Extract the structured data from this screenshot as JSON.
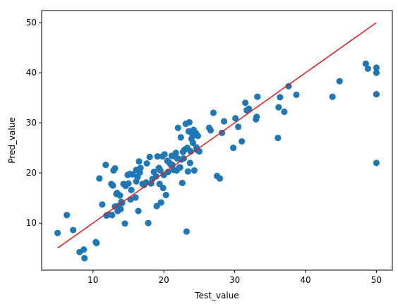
{
  "chart_data": {
    "type": "scatter",
    "title": "",
    "xlabel": "Test_value",
    "ylabel": "Pred_value",
    "xlim": [
      2.75,
      52.25
    ],
    "ylim": [
      0.6,
      52.4
    ],
    "xticks": [
      10,
      20,
      30,
      40,
      50
    ],
    "yticks": [
      10,
      20,
      30,
      40,
      50
    ],
    "grid": false,
    "legend": "none",
    "colors": {
      "points": "#1f77b4",
      "line": "#e41a1c",
      "axes": "#000000"
    },
    "series": [
      {
        "type": "scatter",
        "x": [
          5.0,
          6.3,
          7.2,
          8.1,
          8.7,
          8.8,
          10.4,
          10.5,
          10.9,
          11.3,
          11.8,
          11.9,
          12.2,
          12.6,
          12.7,
          12.8,
          12.9,
          13.1,
          13.1,
          13.3,
          13.4,
          13.5,
          13.6,
          13.8,
          13.9,
          14.0,
          14.1,
          14.3,
          14.5,
          14.6,
          14.9,
          15.0,
          15.2,
          15.3,
          15.4,
          15.6,
          16.0,
          16.1,
          16.1,
          16.3,
          16.4,
          16.5,
          16.6,
          16.7,
          17.0,
          17.2,
          17.5,
          17.6,
          17.8,
          18.0,
          18.2,
          18.4,
          18.6,
          18.9,
          19.0,
          19.1,
          19.3,
          19.4,
          19.5,
          19.6,
          19.8,
          19.9,
          20.0,
          20.1,
          20.3,
          20.5,
          20.6,
          20.8,
          21.0,
          21.1,
          21.2,
          21.4,
          21.5,
          21.7,
          21.8,
          21.9,
          22.0,
          22.2,
          22.3,
          22.4,
          22.5,
          22.6,
          22.7,
          22.8,
          22.9,
          23.0,
          23.1,
          23.2,
          23.3,
          23.4,
          23.5,
          23.6,
          23.7,
          23.8,
          23.9,
          24.0,
          24.1,
          24.2,
          24.3,
          24.4,
          24.5,
          24.6,
          24.7,
          24.8,
          25.0,
          26.4,
          26.6,
          27.0,
          27.5,
          27.9,
          28.2,
          28.5,
          29.8,
          30.1,
          30.5,
          31.0,
          31.5,
          31.7,
          32.0,
          33.0,
          33.1,
          33.2,
          36.1,
          36.2,
          36.4,
          37.0,
          37.6,
          38.7,
          43.8,
          44.8,
          48.5,
          48.8,
          50.0,
          50.0,
          50.0,
          50.0
        ],
        "y": [
          8.0,
          11.6,
          8.6,
          4.2,
          4.7,
          3.0,
          6.2,
          6.0,
          18.9,
          13.7,
          21.6,
          11.5,
          11.7,
          17.8,
          11.6,
          17.5,
          20.5,
          20.9,
          13.3,
          15.8,
          16.0,
          12.4,
          13.4,
          15.5,
          12.8,
          14.2,
          14.0,
          17.8,
          9.9,
          17.4,
          19.6,
          17.9,
          19.8,
          14.7,
          16.6,
          19.7,
          15.1,
          18.3,
          20.6,
          19.2,
          12.4,
          22.3,
          20.1,
          21.0,
          17.8,
          17.6,
          18.1,
          21.9,
          10.0,
          23.2,
          17.9,
          18.8,
          20.2,
          19.3,
          13.4,
          23.3,
          21.0,
          17.8,
          20.5,
          14.1,
          23.3,
          17.0,
          19.6,
          23.7,
          15.6,
          22.4,
          20.2,
          22.0,
          21.6,
          23.4,
          21.6,
          20.6,
          23.3,
          24.0,
          20.5,
          22.9,
          29.0,
          21.1,
          21.1,
          27.1,
          22.7,
          18.0,
          24.2,
          22.9,
          24.6,
          24.7,
          29.8,
          8.3,
          25.0,
          20.3,
          28.3,
          30.1,
          22.0,
          24.3,
          26.8,
          27.8,
          26.0,
          28.6,
          20.5,
          27.6,
          28.0,
          25.1,
          24.6,
          27.4,
          24.3,
          29.0,
          28.5,
          32.0,
          19.4,
          18.9,
          28.0,
          30.3,
          25.0,
          30.9,
          29.2,
          26.3,
          34.0,
          32.5,
          32.8,
          30.7,
          31.2,
          35.2,
          27.0,
          33.1,
          35.1,
          32.2,
          37.3,
          35.6,
          35.2,
          38.3,
          41.8,
          40.8,
          41.0,
          40.0,
          35.7,
          22.0
        ]
      },
      {
        "type": "line",
        "x": [
          5,
          50
        ],
        "y": [
          5,
          50
        ]
      }
    ]
  }
}
